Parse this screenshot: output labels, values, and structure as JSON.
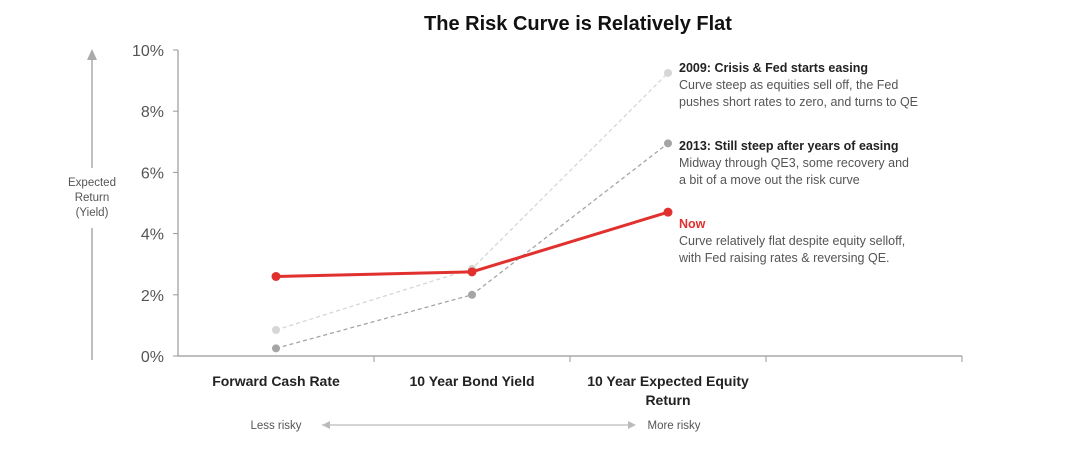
{
  "chart_data": {
    "type": "line",
    "title": "The Risk Curve is Relatively Flat",
    "ylabel": [
      "Expected",
      "Return",
      "(Yield)"
    ],
    "ylim": [
      0,
      10
    ],
    "yticks": [
      "0%",
      "2%",
      "4%",
      "6%",
      "8%",
      "10%"
    ],
    "categories": [
      "Forward Cash Rate",
      "10 Year Bond Yield",
      "10 Year Expected Equity Return"
    ],
    "series": [
      {
        "name": "2009",
        "values": [
          0.85,
          2.85,
          9.25
        ],
        "color": "#d6d6d6",
        "dashed": true
      },
      {
        "name": "2013",
        "values": [
          0.25,
          2.0,
          6.95
        ],
        "color": "#a5a5a5",
        "dashed": true
      },
      {
        "name": "Now",
        "values": [
          2.6,
          2.75,
          4.7
        ],
        "color": "#e0312f",
        "dashed": false
      }
    ],
    "annotations": [
      {
        "title": "2009: Crisis & Fed starts easing",
        "lines": [
          "Curve steep as equities sell off, the Fed",
          "pushes short rates to zero, and turns to QE"
        ],
        "title_color": "#222222"
      },
      {
        "title": "2013: Still steep after years of easing",
        "lines": [
          "Midway through QE3, some recovery and",
          "a bit of a move out the risk curve"
        ],
        "title_color": "#222222"
      },
      {
        "title": "Now",
        "lines": [
          "Curve relatively flat despite equity selloff,",
          "with Fed raising rates & reversing QE."
        ],
        "title_color": "#e0312f"
      }
    ],
    "risk_axis": {
      "left": "Less risky",
      "right": "More risky"
    }
  }
}
